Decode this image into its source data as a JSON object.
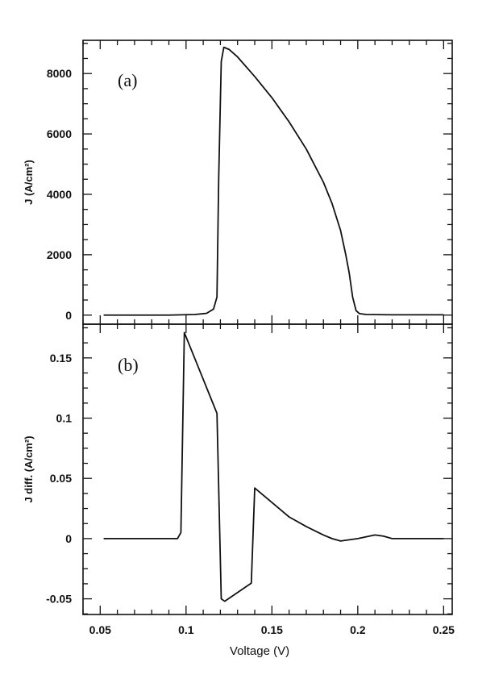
{
  "chart_data": [
    {
      "type": "line",
      "panel": "(a)",
      "ylabel": "J (A/cm²)",
      "xlabel": "",
      "xlim": [
        0.04,
        0.255
      ],
      "ylim": [
        -300,
        9100
      ],
      "xticks": [
        0.05,
        0.1,
        0.15,
        0.2,
        0.25
      ],
      "yticks": [
        0,
        2000,
        4000,
        6000,
        8000
      ],
      "ytick_labels": [
        "0",
        "2000",
        "4000",
        "6000",
        "8000"
      ],
      "grid": false,
      "series": [
        {
          "x": [
            0.052,
            0.09,
            0.105,
            0.112,
            0.116,
            0.118,
            0.119,
            0.1205,
            0.122,
            0.125,
            0.13,
            0.14,
            0.15,
            0.16,
            0.17,
            0.18,
            0.185,
            0.19,
            0.193,
            0.195,
            0.197,
            0.199,
            0.201,
            0.205,
            0.22,
            0.25
          ],
          "y": [
            0,
            0,
            20,
            60,
            200,
            600,
            4500,
            8400,
            8870,
            8800,
            8550,
            7900,
            7200,
            6400,
            5500,
            4400,
            3700,
            2800,
            2000,
            1400,
            600,
            150,
            50,
            20,
            10,
            10
          ]
        }
      ]
    },
    {
      "type": "line",
      "panel": "(b)",
      "ylabel": "J diff. (A/cm²)",
      "xlabel": "Voltage (V)",
      "xlim": [
        0.04,
        0.255
      ],
      "ylim": [
        -0.063,
        0.178
      ],
      "xticks": [
        0.05,
        0.1,
        0.15,
        0.2,
        0.25
      ],
      "xtick_labels": [
        "0.05",
        "0.1",
        "0.15",
        "0.2",
        "0.25"
      ],
      "yticks": [
        -0.05,
        0,
        0.05,
        0.1,
        0.15
      ],
      "ytick_labels": [
        "-0.05",
        "0",
        "0.05",
        "0.1",
        "0.15"
      ],
      "grid": false,
      "series": [
        {
          "x": [
            0.052,
            0.095,
            0.097,
            0.099,
            0.118,
            0.1205,
            0.1225,
            0.138,
            0.14,
            0.15,
            0.16,
            0.17,
            0.18,
            0.185,
            0.19,
            0.2,
            0.21,
            0.215,
            0.22,
            0.25
          ],
          "y": [
            0,
            0,
            0.005,
            0.171,
            0.104,
            -0.05,
            -0.052,
            -0.037,
            0.042,
            0.03,
            0.018,
            0.01,
            0.003,
            0,
            -0.002,
            0,
            0.003,
            0.002,
            0,
            0
          ]
        }
      ]
    }
  ]
}
